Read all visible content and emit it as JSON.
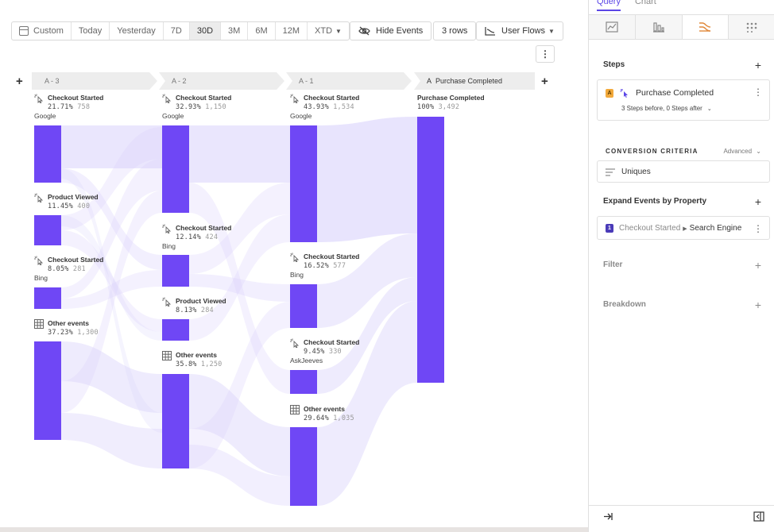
{
  "toolbar": {
    "date_range": [
      {
        "label": "Custom",
        "icon": "calendar-icon",
        "active": false
      },
      {
        "label": "Today",
        "active": false
      },
      {
        "label": "Yesterday",
        "active": false
      },
      {
        "label": "7D",
        "active": false
      },
      {
        "label": "30D",
        "active": true
      },
      {
        "label": "3M",
        "active": false
      },
      {
        "label": "6M",
        "active": false
      },
      {
        "label": "12M",
        "active": false
      },
      {
        "label": "XTD",
        "active": false,
        "dropdown": true
      }
    ],
    "hide_events_label": "Hide Events",
    "rows_label": "3 rows",
    "view_label": "User Flows"
  },
  "flow": {
    "accent_color": "#6f47f5",
    "link_color": "#d9d2fb",
    "columns": [
      {
        "tag": "A - 3"
      },
      {
        "tag": "A - 2"
      },
      {
        "tag": "A - 1"
      },
      {
        "tag": "Purchase Completed",
        "badge": "A"
      }
    ],
    "nodes": [
      {
        "col": 0,
        "event": "Checkout Started",
        "percent": "21.71%",
        "count": "758",
        "property": "Google",
        "icon": "event-cursor-icon"
      },
      {
        "col": 0,
        "event": "Product Viewed",
        "percent": "11.45%",
        "count": "400",
        "property": "",
        "icon": "event-cursor-icon"
      },
      {
        "col": 0,
        "event": "Checkout Started",
        "percent": "8.05%",
        "count": "281",
        "property": "Bing",
        "icon": "event-cursor-icon"
      },
      {
        "col": 0,
        "event": "Other events",
        "percent": "37.23%",
        "count": "1,300",
        "property": "",
        "icon": "grid-icon"
      },
      {
        "col": 1,
        "event": "Checkout Started",
        "percent": "32.93%",
        "count": "1,150",
        "property": "Google",
        "icon": "event-cursor-icon"
      },
      {
        "col": 1,
        "event": "Checkout Started",
        "percent": "12.14%",
        "count": "424",
        "property": "Bing",
        "icon": "event-cursor-icon"
      },
      {
        "col": 1,
        "event": "Product Viewed",
        "percent": "8.13%",
        "count": "284",
        "property": "",
        "icon": "event-cursor-icon"
      },
      {
        "col": 1,
        "event": "Other events",
        "percent": "35.8%",
        "count": "1,250",
        "property": "",
        "icon": "grid-icon"
      },
      {
        "col": 2,
        "event": "Checkout Started",
        "percent": "43.93%",
        "count": "1,534",
        "property": "Google",
        "icon": "event-cursor-icon"
      },
      {
        "col": 2,
        "event": "Checkout Started",
        "percent": "16.52%",
        "count": "577",
        "property": "Bing",
        "icon": "event-cursor-icon"
      },
      {
        "col": 2,
        "event": "Checkout Started",
        "percent": "9.45%",
        "count": "330",
        "property": "AskJeeves",
        "icon": "event-cursor-icon"
      },
      {
        "col": 2,
        "event": "Other events",
        "percent": "29.64%",
        "count": "1,035",
        "property": "",
        "icon": "grid-icon"
      },
      {
        "col": 3,
        "event": "Purchase Completed",
        "percent": "100%",
        "count": "3,492",
        "property": ""
      }
    ]
  },
  "panel": {
    "tabs": [
      "Query",
      "Chart"
    ],
    "active_tab": "Query",
    "vis_icons": [
      "line-chart-icon",
      "bar-chart-icon",
      "flows-icon",
      "grid-dots-icon"
    ],
    "steps_title": "Steps",
    "step": {
      "badge": "A",
      "event": "Purchase Completed",
      "detail": "3 Steps before, 0 Steps after"
    },
    "criteria_title": "CONVERSION CRITERIA",
    "criteria_mode": "Advanced",
    "criteria_value": "Uniques",
    "expand_title": "Expand Events by Property",
    "expand": {
      "badge": "1",
      "event": "Checkout Started",
      "property": "Search Engine"
    },
    "filter_title": "Filter",
    "breakdown_title": "Breakdown"
  }
}
